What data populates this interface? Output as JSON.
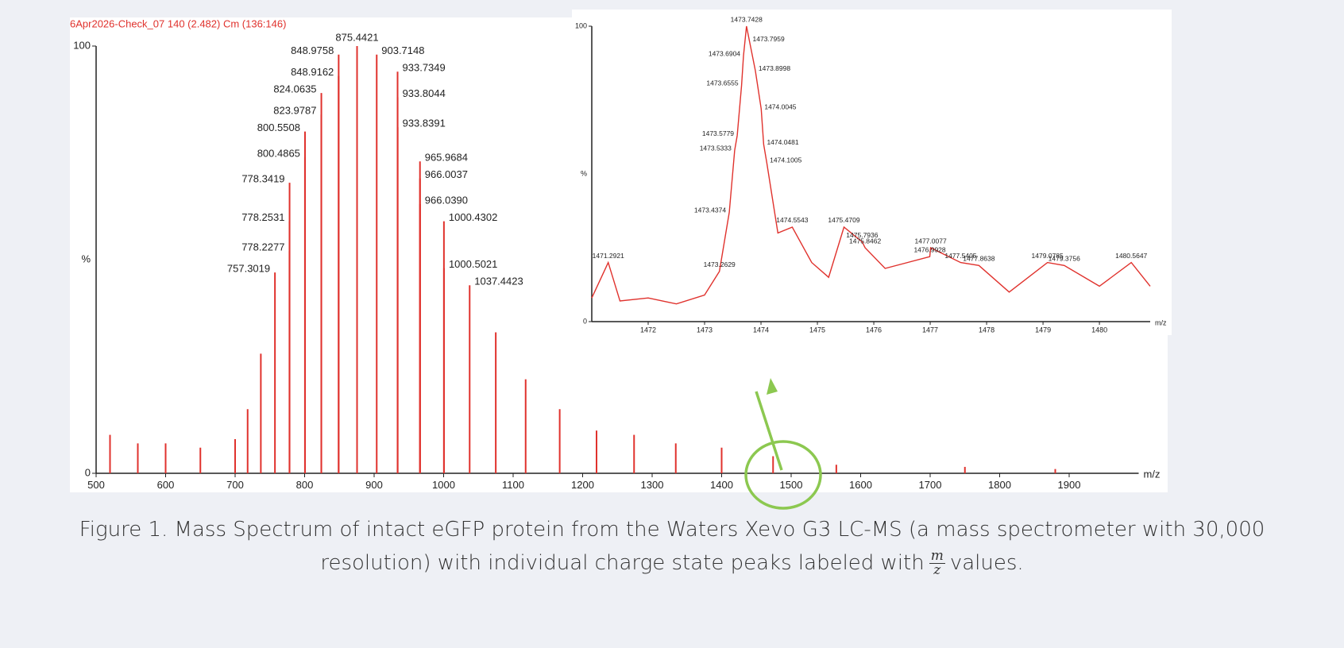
{
  "chart_data": [
    {
      "type": "spectrum",
      "title": "6Apr2026-Check_07 140 (2.482) Cm (136:146)",
      "xlabel": "m/z",
      "ylabel": "%",
      "color": "#e0322d",
      "xlim": [
        500,
        2000
      ],
      "xticks": [
        500,
        600,
        700,
        800,
        900,
        1000,
        1100,
        1200,
        1300,
        1400,
        1500,
        1600,
        1700,
        1800,
        1900
      ],
      "ylim": [
        0,
        100
      ],
      "yticks": [
        0,
        100
      ],
      "ylabel_at": 50,
      "x": [
        520,
        560,
        600,
        650,
        700,
        718,
        737,
        757.3019,
        778.2277,
        778.2531,
        778.3419,
        800.4865,
        800.5508,
        823.9787,
        824.0635,
        848.9162,
        848.9758,
        875.4421,
        903.7148,
        933.7349,
        933.8044,
        933.8391,
        965.9684,
        966.0037,
        966.039,
        1000.4302,
        1000.5021,
        1037.4423,
        1075,
        1118,
        1167,
        1220,
        1274,
        1334,
        1400,
        1474,
        1565,
        1750,
        1880
      ],
      "values": [
        9,
        7,
        7,
        6,
        8,
        15,
        28,
        47,
        52,
        59,
        68,
        74,
        80,
        84,
        89,
        93,
        98,
        100,
        98,
        94,
        88,
        81,
        73,
        69,
        63,
        59,
        48,
        44,
        33,
        22,
        15,
        10,
        9,
        7,
        6,
        4,
        2,
        1.5,
        1
      ],
      "labels": [
        null,
        null,
        null,
        null,
        null,
        null,
        null,
        "757.3019",
        "778.2277",
        "778.2531",
        "778.3419",
        "800.4865",
        "800.5508",
        "823.9787",
        "824.0635",
        "848.9162",
        "848.9758",
        "875.4421",
        "903.7148",
        "933.7349",
        "933.8044",
        "933.8391",
        "965.9684",
        "966.0037",
        "966.0390",
        "1000.4302",
        "1000.5021",
        "1037.4423",
        null,
        null,
        null,
        null,
        null,
        null,
        null,
        null,
        null,
        null,
        null
      ]
    },
    {
      "type": "profile",
      "xlabel": "m/z",
      "ylabel": "%",
      "color": "#e0322d",
      "xlim": [
        1471,
        1480.9
      ],
      "xticks": [
        1472,
        1473,
        1474,
        1475,
        1476,
        1477,
        1478,
        1479,
        1480
      ],
      "ylim": [
        0,
        100
      ],
      "yticks": [
        0,
        100
      ],
      "ylabel_at": 50,
      "x": [
        1471.0,
        1471.2921,
        1471.5,
        1472.0,
        1472.5,
        1473.0,
        1473.2629,
        1473.4374,
        1473.5333,
        1473.5779,
        1473.6555,
        1473.6904,
        1473.7428,
        1473.7959,
        1473.8998,
        1474.0045,
        1474.0481,
        1474.1005,
        1474.3,
        1474.5543,
        1474.9,
        1475.2,
        1475.4709,
        1475.7936,
        1475.8462,
        1476.2,
        1476.9928,
        1477.0077,
        1477.5405,
        1477.8638,
        1478.4,
        1479.0785,
        1479.3756,
        1480.0,
        1480.5647,
        1480.9
      ],
      "values": [
        8,
        20,
        7,
        8,
        6,
        9,
        17,
        37,
        58,
        63,
        80,
        90,
        100,
        95,
        85,
        72,
        60,
        54,
        30,
        32,
        20,
        15,
        32,
        27,
        25,
        18,
        22,
        25,
        20,
        19,
        10,
        20,
        19,
        12,
        20,
        12
      ],
      "labels": [
        null,
        "1471.2921",
        null,
        null,
        null,
        null,
        "1473.2629",
        "1473.4374",
        "1473.5333",
        "1473.5779",
        "1473.6555",
        "1473.6904",
        "1473.7428",
        "1473.7959",
        "1473.8998",
        "1474.0045",
        "1474.0481",
        "1474.1005",
        null,
        "1474.5543",
        null,
        null,
        "1475.4709",
        "1475.7936",
        "1475.8462",
        null,
        "1476.9928",
        "1477.0077",
        "1477.5405",
        "1477.8638",
        null,
        "1479.0785",
        "1479.3756",
        null,
        "1480.5647",
        null
      ]
    }
  ],
  "caption": {
    "line1": "Figure 1. Mass Spectrum of intact eGFP protein from the Waters Xevo G3 LC-MS (a mass spectrometer with 30,000",
    "line2": "resolution) with individual charge state peaks labeled with",
    "numerator": "m",
    "denominator": "z",
    "after": "values."
  }
}
